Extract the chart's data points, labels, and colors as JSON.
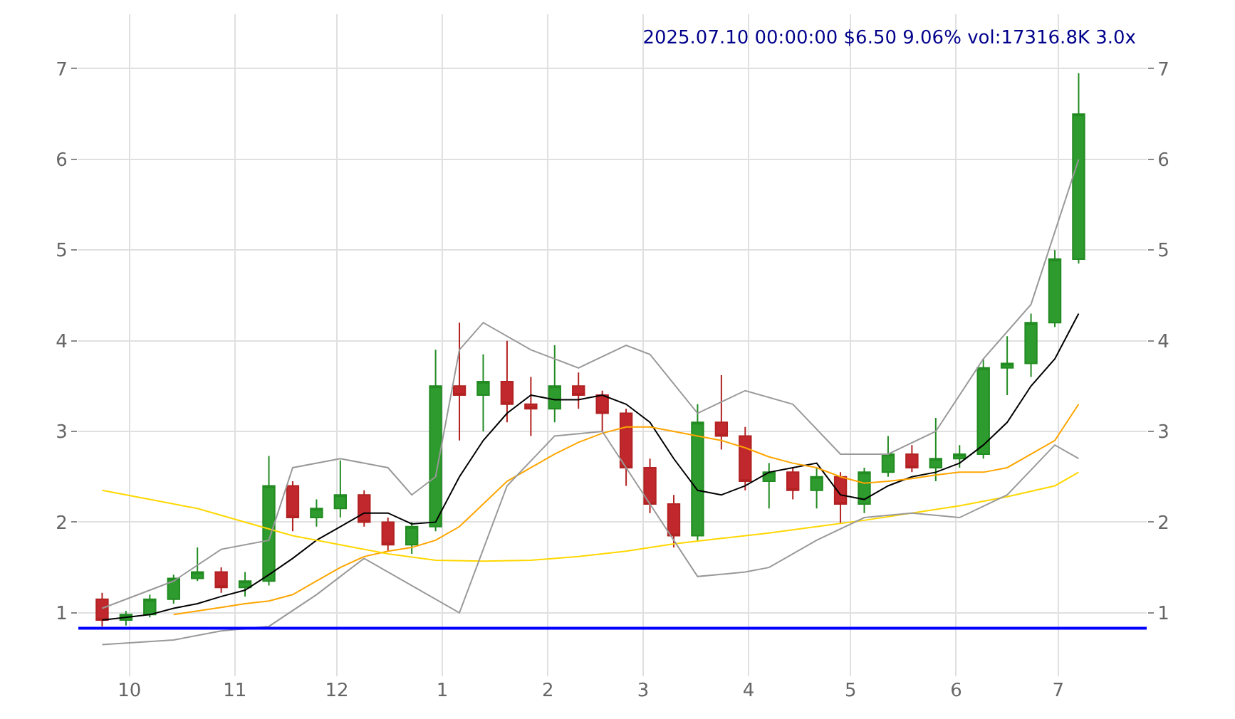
{
  "chart_data": {
    "type": "candlestick",
    "title": "2025.07.10 00:00:00 $6.50 9.06% vol:17316.8K 3.0x",
    "x": [
      "2024-09-23",
      "2024-09-30",
      "2024-10-07",
      "2024-10-14",
      "2024-10-21",
      "2024-10-28",
      "2024-11-04",
      "2024-11-11",
      "2024-11-18",
      "2024-11-25",
      "2024-12-02",
      "2024-12-09",
      "2024-12-16",
      "2024-12-23",
      "2024-12-30",
      "2025-01-06",
      "2025-01-13",
      "2025-01-20",
      "2025-01-27",
      "2025-02-03",
      "2025-02-10",
      "2025-02-17",
      "2025-02-24",
      "2025-03-03",
      "2025-03-10",
      "2025-03-17",
      "2025-03-24",
      "2025-03-31",
      "2025-04-07",
      "2025-04-14",
      "2025-04-21",
      "2025-04-28",
      "2025-05-05",
      "2025-05-12",
      "2025-05-19",
      "2025-05-26",
      "2025-06-02",
      "2025-06-09",
      "2025-06-16",
      "2025-06-23",
      "2025-06-30",
      "2025-07-07"
    ],
    "ohlc": [
      [
        1.15,
        1.22,
        0.85,
        0.92
      ],
      [
        0.92,
        1.02,
        0.86,
        0.98
      ],
      [
        0.98,
        1.2,
        0.95,
        1.15
      ],
      [
        1.15,
        1.42,
        1.1,
        1.38
      ],
      [
        1.38,
        1.72,
        1.35,
        1.45
      ],
      [
        1.45,
        1.5,
        1.22,
        1.28
      ],
      [
        1.28,
        1.45,
        1.18,
        1.35
      ],
      [
        1.35,
        2.73,
        1.3,
        2.4
      ],
      [
        2.4,
        2.45,
        1.9,
        2.05
      ],
      [
        2.05,
        2.25,
        1.95,
        2.15
      ],
      [
        2.15,
        2.68,
        2.05,
        2.3
      ],
      [
        2.3,
        2.35,
        1.95,
        2.0
      ],
      [
        2.0,
        2.05,
        1.68,
        1.75
      ],
      [
        1.75,
        2.0,
        1.65,
        1.95
      ],
      [
        1.95,
        3.9,
        1.9,
        3.5
      ],
      [
        3.5,
        4.2,
        2.9,
        3.4
      ],
      [
        3.4,
        3.85,
        3.0,
        3.55
      ],
      [
        3.55,
        4.0,
        3.1,
        3.3
      ],
      [
        3.3,
        3.6,
        2.95,
        3.25
      ],
      [
        3.25,
        3.95,
        3.1,
        3.5
      ],
      [
        3.5,
        3.65,
        3.25,
        3.4
      ],
      [
        3.4,
        3.45,
        3.0,
        3.2
      ],
      [
        3.2,
        3.25,
        2.4,
        2.6
      ],
      [
        2.6,
        2.7,
        2.1,
        2.2
      ],
      [
        2.2,
        2.3,
        1.72,
        1.85
      ],
      [
        1.85,
        3.3,
        1.8,
        3.1
      ],
      [
        3.1,
        3.62,
        2.8,
        2.95
      ],
      [
        2.95,
        3.05,
        2.35,
        2.45
      ],
      [
        2.45,
        2.65,
        2.15,
        2.55
      ],
      [
        2.55,
        2.6,
        2.25,
        2.35
      ],
      [
        2.35,
        2.6,
        2.15,
        2.5
      ],
      [
        2.5,
        2.55,
        1.98,
        2.2
      ],
      [
        2.2,
        2.6,
        2.1,
        2.55
      ],
      [
        2.55,
        2.95,
        2.5,
        2.75
      ],
      [
        2.75,
        2.85,
        2.55,
        2.6
      ],
      [
        2.6,
        3.15,
        2.45,
        2.7
      ],
      [
        2.7,
        2.85,
        2.6,
        2.75
      ],
      [
        2.75,
        3.8,
        2.7,
        3.7
      ],
      [
        3.7,
        4.05,
        3.4,
        3.75
      ],
      [
        3.75,
        4.3,
        3.6,
        4.2
      ],
      [
        4.2,
        5.0,
        4.15,
        4.9
      ],
      [
        4.9,
        6.95,
        4.85,
        6.5
      ]
    ],
    "series": [
      {
        "type": "line",
        "color": "#000000",
        "values": [
          0.92,
          0.95,
          0.98,
          1.05,
          1.1,
          1.18,
          1.25,
          1.42,
          1.6,
          1.8,
          1.95,
          2.1,
          2.1,
          1.98,
          2.0,
          2.5,
          2.9,
          3.2,
          3.4,
          3.35,
          3.35,
          3.4,
          3.3,
          3.1,
          2.7,
          2.35,
          2.3,
          2.4,
          2.55,
          2.6,
          2.65,
          2.3,
          2.25,
          2.4,
          2.5,
          2.55,
          2.65,
          2.85,
          3.1,
          3.5,
          3.8,
          4.3
        ]
      },
      {
        "type": "line",
        "color": "#ffa500",
        "values": [
          null,
          null,
          null,
          0.98,
          1.02,
          1.06,
          1.1,
          1.13,
          1.2,
          1.35,
          1.5,
          1.62,
          1.68,
          1.72,
          1.8,
          1.95,
          2.2,
          2.45,
          2.6,
          2.75,
          2.88,
          2.98,
          3.05,
          3.05,
          3.0,
          2.95,
          2.9,
          2.82,
          2.72,
          2.65,
          2.6,
          2.5,
          2.43,
          2.45,
          2.48,
          2.52,
          2.55,
          2.55,
          2.6,
          2.75,
          2.9,
          3.3
        ]
      },
      {
        "type": "line",
        "color": "#ffd700",
        "x": [
          "2024-09-23",
          "2024-10-07",
          "2024-10-21",
          "2024-11-04",
          "2024-11-18",
          "2024-12-02",
          "2024-12-16",
          "2024-12-30",
          "2025-01-13",
          "2025-01-27",
          "2025-02-10",
          "2025-02-24",
          "2025-03-10",
          "2025-03-24",
          "2025-04-07",
          "2025-04-21",
          "2025-05-05",
          "2025-05-19",
          "2025-06-02",
          "2025-06-16",
          "2025-06-30",
          "2025-07-07"
        ],
        "values": [
          2.35,
          2.25,
          2.15,
          2.0,
          1.85,
          1.75,
          1.65,
          1.58,
          1.57,
          1.58,
          1.62,
          1.68,
          1.76,
          1.82,
          1.88,
          1.95,
          2.02,
          2.1,
          2.18,
          2.28,
          2.4,
          2.55
        ]
      },
      {
        "type": "line",
        "color": "#999999",
        "x": [
          "2024-09-23",
          "2024-10-14",
          "2024-10-28",
          "2024-11-11",
          "2024-11-18",
          "2024-12-02",
          "2024-12-16",
          "2024-12-23",
          "2024-12-30",
          "2025-01-06",
          "2025-01-13",
          "2025-01-27",
          "2025-02-10",
          "2025-02-24",
          "2025-03-03",
          "2025-03-17",
          "2025-03-31",
          "2025-04-14",
          "2025-04-28",
          "2025-05-12",
          "2025-05-26",
          "2025-06-09",
          "2025-06-23",
          "2025-07-07"
        ],
        "values": [
          1.05,
          1.35,
          1.7,
          1.8,
          2.6,
          2.7,
          2.6,
          2.3,
          2.5,
          3.9,
          4.2,
          3.9,
          3.7,
          3.95,
          3.85,
          3.2,
          3.45,
          3.3,
          2.75,
          2.75,
          3.0,
          3.8,
          4.4,
          6.0
        ]
      },
      {
        "type": "line",
        "color": "#999999",
        "x": [
          "2024-09-23",
          "2024-10-14",
          "2024-10-28",
          "2024-11-11",
          "2024-11-25",
          "2024-12-09",
          "2024-12-23",
          "2025-01-06",
          "2025-01-20",
          "2025-02-03",
          "2025-02-17",
          "2025-03-03",
          "2025-03-17",
          "2025-03-31",
          "2025-04-07",
          "2025-04-21",
          "2025-05-05",
          "2025-05-19",
          "2025-06-02",
          "2025-06-16",
          "2025-06-30",
          "2025-07-07"
        ],
        "values": [
          0.65,
          0.7,
          0.8,
          0.85,
          1.2,
          1.6,
          1.3,
          1.0,
          2.4,
          2.95,
          3.0,
          2.2,
          1.4,
          1.45,
          1.5,
          1.8,
          2.05,
          2.1,
          2.05,
          2.3,
          2.85,
          2.7
        ]
      }
    ],
    "ref_lines": [
      {
        "axis": "y",
        "value": 0.83,
        "color": "#0000ff"
      }
    ],
    "xlim": [
      "2024-09-16",
      "2025-07-27"
    ],
    "xticks": [
      {
        "value": "2024-10-01",
        "label": "10"
      },
      {
        "value": "2024-11-01",
        "label": "11"
      },
      {
        "value": "2024-12-01",
        "label": "12"
      },
      {
        "value": "2025-01-01",
        "label": "1"
      },
      {
        "value": "2025-02-01",
        "label": "2"
      },
      {
        "value": "2025-03-01",
        "label": "3"
      },
      {
        "value": "2025-04-01",
        "label": "4"
      },
      {
        "value": "2025-05-01",
        "label": "5"
      },
      {
        "value": "2025-06-01",
        "label": "6"
      },
      {
        "value": "2025-07-01",
        "label": "7"
      }
    ],
    "ylim": [
      0.3,
      7.6
    ],
    "yticks": [
      1,
      2,
      3,
      4,
      5,
      6,
      7
    ],
    "y2lim": [
      0.3,
      7.6
    ],
    "y2ticks": [
      1,
      2,
      3,
      4,
      5,
      6,
      7
    ],
    "grid": true
  }
}
